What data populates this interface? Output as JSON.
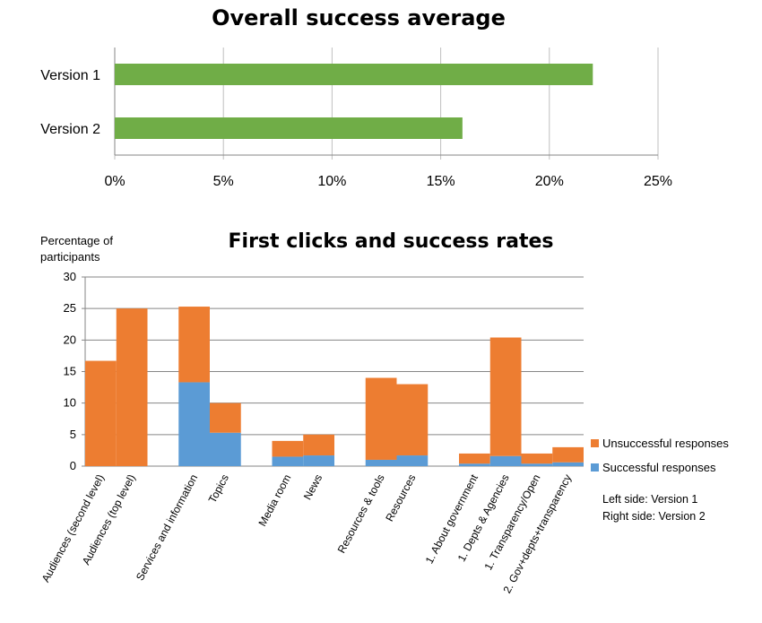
{
  "colors": {
    "successful": "#5B9BD5",
    "unsuccessful": "#ED7D31",
    "success_avg": "#70AD47",
    "grid": "#868686"
  },
  "chart_data": [
    {
      "type": "bar",
      "orientation": "horizontal",
      "title": "Overall success average",
      "categories": [
        "Version 1",
        "Version 2"
      ],
      "values": [
        22,
        16
      ],
      "xlim": [
        0,
        25
      ],
      "xticks": [
        "0%",
        "5%",
        "10%",
        "15%",
        "20%",
        "25%"
      ],
      "grid": "vertical-gridlines",
      "legend": "none"
    },
    {
      "type": "bar",
      "stacked": true,
      "title": "First clicks and success rates",
      "ylabel": "Percentage of participants",
      "ylim": [
        0,
        30
      ],
      "yticks": [
        "0",
        "5",
        "10",
        "15",
        "20",
        "25",
        "30"
      ],
      "groups": [
        {
          "categories": [
            "Audiences (second level)",
            "Audiences (top level)"
          ]
        },
        {
          "categories": [
            "Services and information",
            "Topics"
          ]
        },
        {
          "categories": [
            "Media room",
            "News"
          ]
        },
        {
          "categories": [
            "Resources & tools",
            "Resources"
          ]
        },
        {
          "categories": [
            "1. About government",
            "1. Depts & Agencies",
            "1. Transparency/Open",
            "2. Gov+depts+transparency"
          ]
        }
      ],
      "categories": [
        "Audiences (second level)",
        "Audiences (top level)",
        "Services and information",
        "Topics",
        "Media room",
        "News",
        "Resources & tools",
        "Resources",
        "1. About government",
        "1. Depts & Agencies",
        "1. Transparency/Open",
        "2. Gov+depts+transparency"
      ],
      "series": [
        {
          "name": "Successful responses",
          "color": "#5B9BD5",
          "values": [
            0,
            0,
            13.3,
            5.3,
            1.5,
            1.7,
            1.0,
            1.7,
            0.4,
            1.6,
            0.4,
            0.6
          ]
        },
        {
          "name": "Unsuccessful responses",
          "color": "#ED7D31",
          "values": [
            16.7,
            25.0,
            12.0,
            4.7,
            2.5,
            3.3,
            13.0,
            11.3,
            1.6,
            18.8,
            1.6,
            2.4
          ]
        }
      ],
      "legend": "right",
      "notes": [
        "Left side: Version 1",
        "Right side: Version 2"
      ]
    }
  ]
}
